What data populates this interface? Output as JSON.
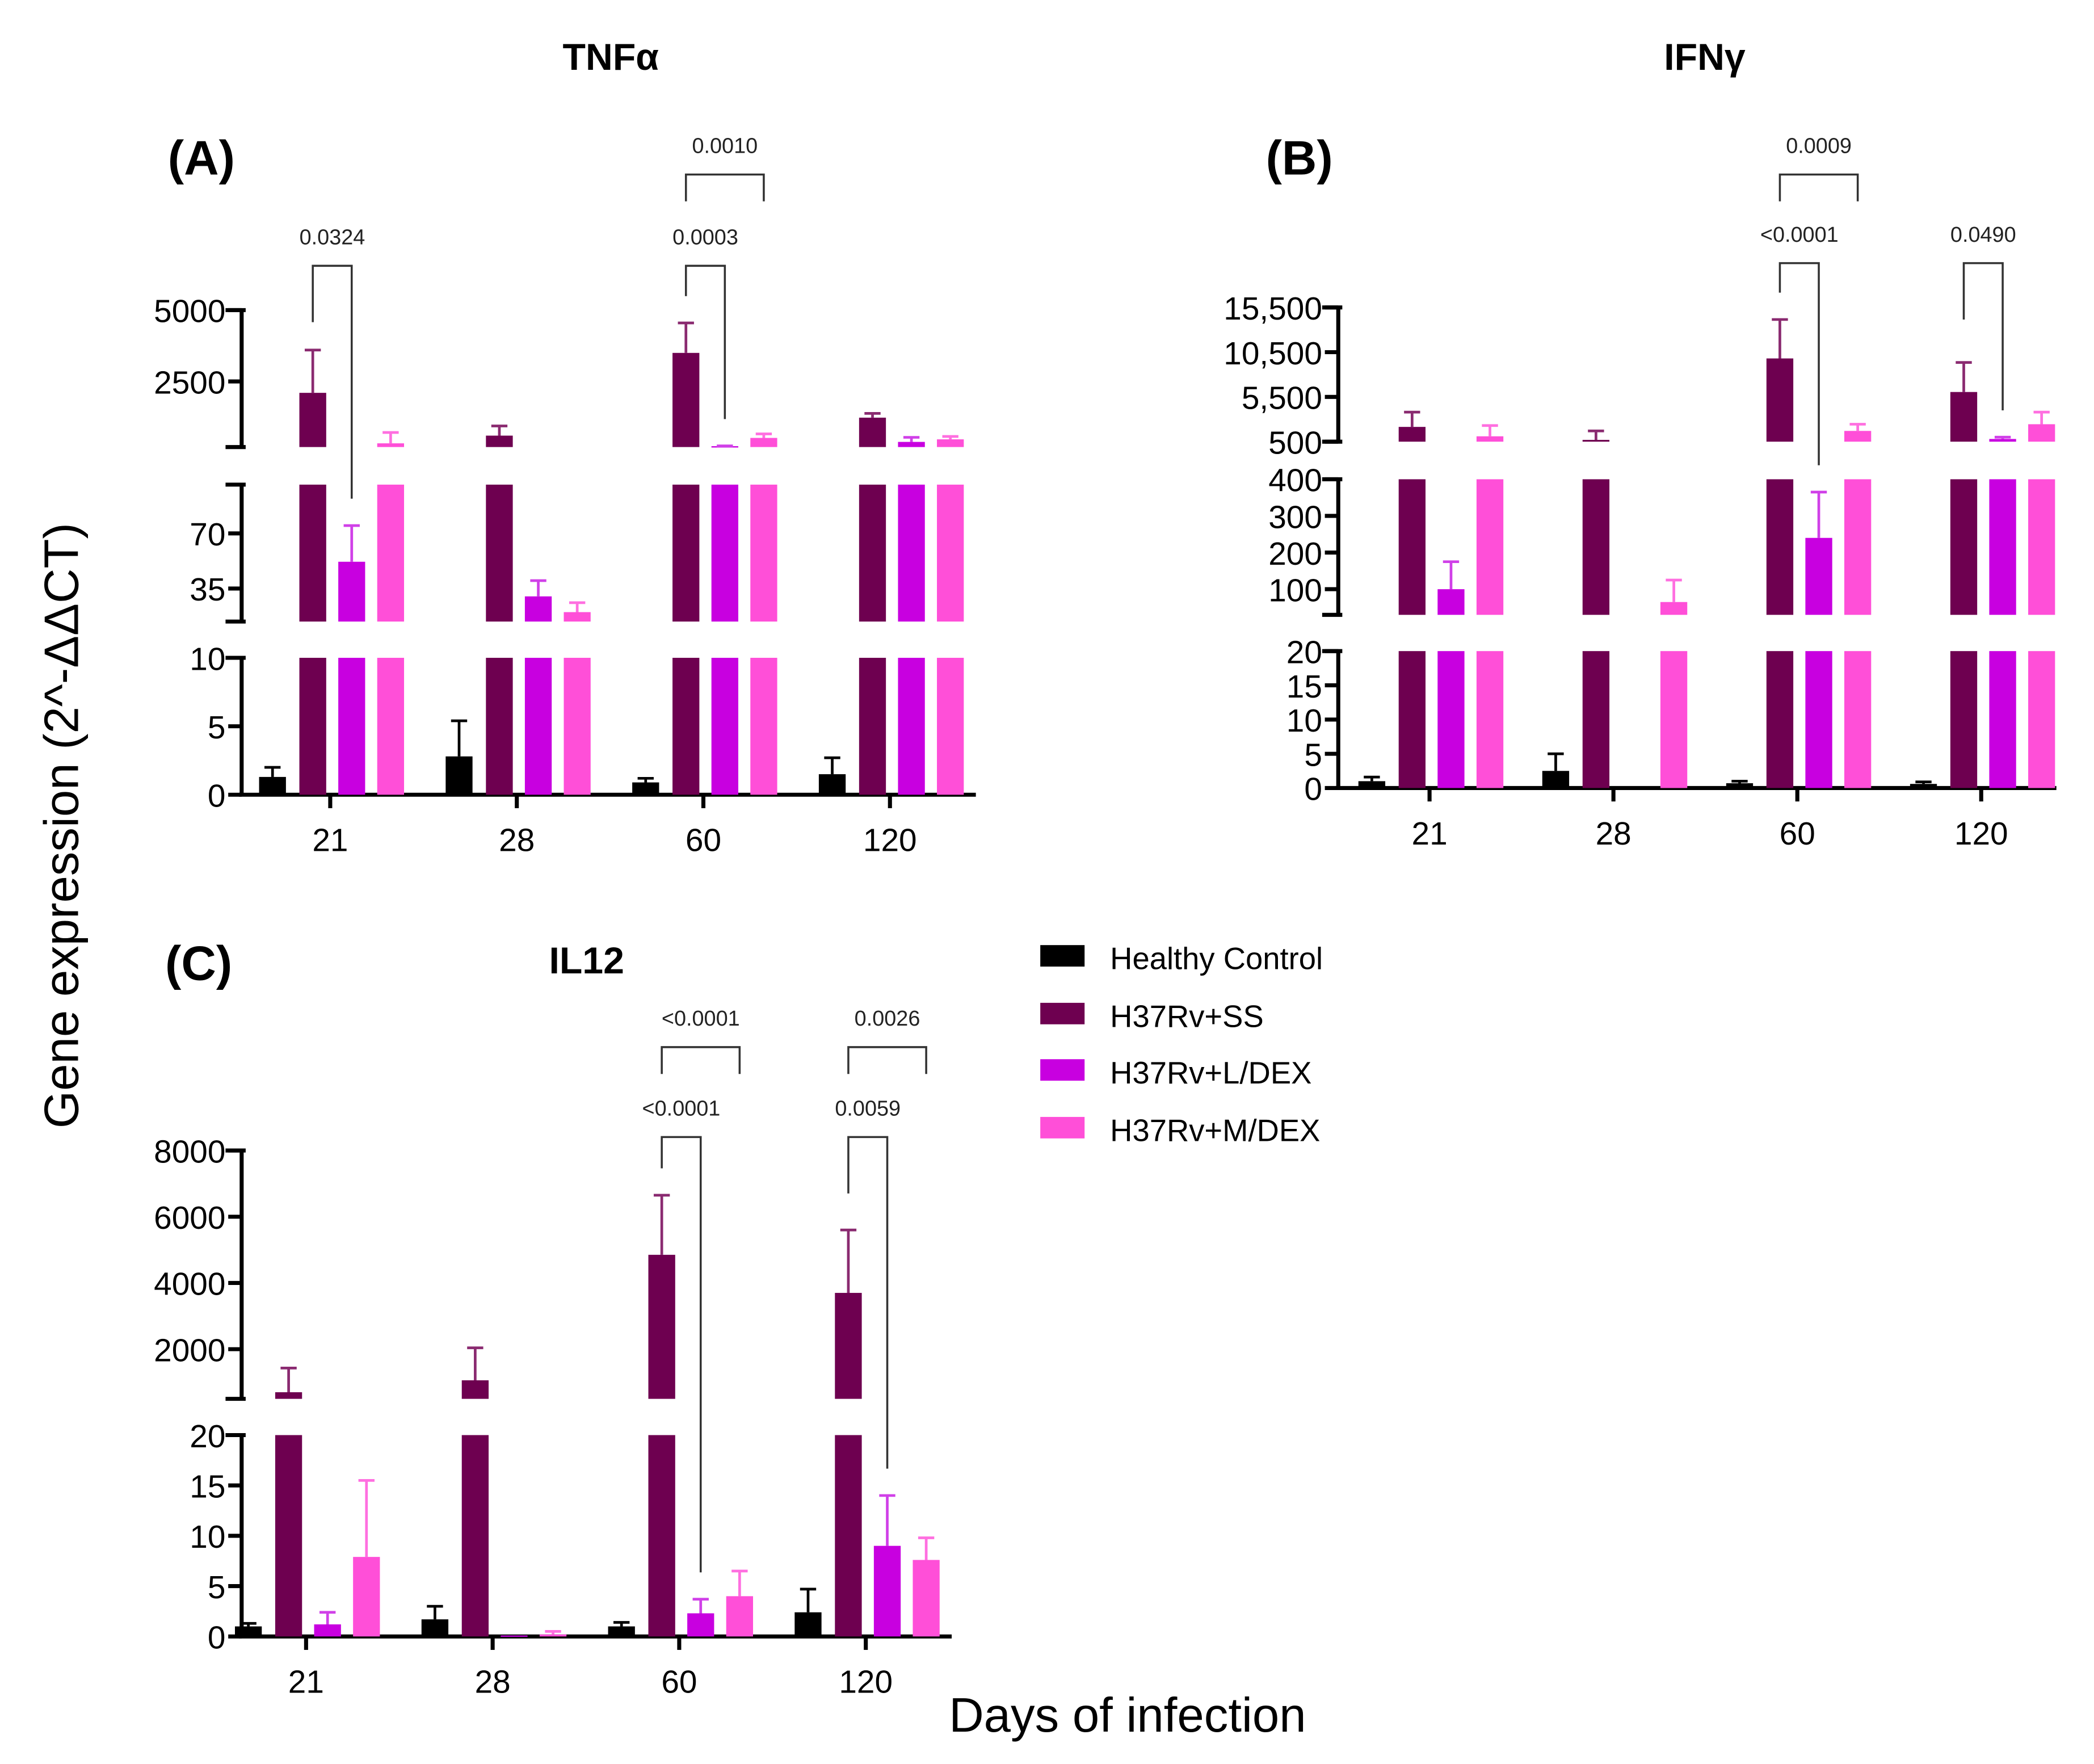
{
  "colors": {
    "Healthy Control": "#000000",
    "H37Rv+SS": "#6e0050",
    "H37Rv+L/DEX": "#c800e0",
    "H37Rv+M/DEX": "#ff4fd8"
  },
  "y_axis_label": "Gene expression (2^-ΔΔCT)",
  "x_axis_label": "Days of infection",
  "legend": [
    "Healthy Control",
    "H37Rv+SS",
    "H37Rv+L/DEX",
    "H37Rv+M/DEX"
  ],
  "chart_data": [
    {
      "type": "bar",
      "panel": "(A)",
      "title": "TNFα",
      "categories": [
        "21",
        "28",
        "60",
        "120"
      ],
      "y_segments": [
        {
          "range": [
            0,
            10
          ],
          "ticks": [
            {
              "value": 0,
              "label": "0"
            },
            {
              "value": 5,
              "label": "5"
            },
            {
              "value": 10,
              "label": "10"
            }
          ]
        },
        {
          "range": [
            14,
            101
          ],
          "ticks": [
            {
              "value": 35,
              "label": "35"
            },
            {
              "value": 70,
              "label": "70"
            }
          ]
        },
        {
          "range": [
            200,
            5000
          ],
          "ticks": [
            {
              "value": 2500,
              "label": "2500"
            },
            {
              "value": 5000,
              "label": "5000"
            }
          ]
        }
      ],
      "series": [
        {
          "name": "Healthy Control",
          "values": [
            1.3,
            2.8,
            0.9,
            1.5
          ],
          "errors": [
            2.0,
            5.4,
            1.2,
            2.7
          ]
        },
        {
          "name": "H37Rv+SS",
          "values": [
            2100,
            600,
            3500,
            1230
          ],
          "errors": [
            3600,
            940,
            4550,
            1380
          ]
        },
        {
          "name": "H37Rv+L/DEX",
          "values": [
            52,
            30,
            230,
            380
          ],
          "errors": [
            75,
            40,
            240,
            540
          ]
        },
        {
          "name": "H37Rv+M/DEX",
          "values": [
            330,
            20,
            520,
            470
          ],
          "errors": [
            710,
            26,
            660,
            570
          ]
        }
      ],
      "comparisons": [
        {
          "category": 0,
          "from": 1,
          "to": 2,
          "label": "0.0324",
          "tier": 1
        },
        {
          "category": 2,
          "from": 1,
          "to": 2,
          "label": "0.0003",
          "tier": 1
        },
        {
          "category": 2,
          "from": 1,
          "to": 3,
          "label": "0.0010",
          "tier": 2
        }
      ]
    },
    {
      "type": "bar",
      "panel": "(B)",
      "title": "IFNγ",
      "categories": [
        "21",
        "28",
        "60",
        "120"
      ],
      "y_segments": [
        {
          "range": [
            0,
            20
          ],
          "ticks": [
            {
              "value": 0,
              "label": "0"
            },
            {
              "value": 5,
              "label": "5"
            },
            {
              "value": 10,
              "label": "10"
            },
            {
              "value": 15,
              "label": "15"
            },
            {
              "value": 20,
              "label": "20"
            }
          ]
        },
        {
          "range": [
            30,
            400
          ],
          "ticks": [
            {
              "value": 100,
              "label": "100"
            },
            {
              "value": 200,
              "label": "200"
            },
            {
              "value": 300,
              "label": "300"
            },
            {
              "value": 400,
              "label": "400"
            }
          ]
        },
        {
          "range": [
            500,
            15500
          ],
          "ticks": [
            {
              "value": 500,
              "label": "500"
            },
            {
              "value": 5500,
              "label": "5,500"
            },
            {
              "value": 10500,
              "label": "10,500"
            },
            {
              "value": 15500,
              "label": "15,500"
            }
          ]
        }
      ],
      "series": [
        {
          "name": "Healthy Control",
          "values": [
            1.0,
            2.5,
            0.7,
            0.6
          ],
          "errors": [
            1.6,
            5.0,
            1.0,
            0.9
          ]
        },
        {
          "name": "H37Rv+SS",
          "values": [
            2150,
            700,
            9800,
            6050
          ],
          "errors": [
            3800,
            1700,
            14150,
            9350
          ]
        },
        {
          "name": "H37Rv+L/DEX",
          "values": [
            100,
            0,
            240,
            800
          ],
          "errors": [
            175,
            0,
            365,
            1000
          ]
        },
        {
          "name": "H37Rv+M/DEX",
          "values": [
            1100,
            65,
            1700,
            2450
          ],
          "errors": [
            2300,
            125,
            2450,
            3800
          ]
        }
      ],
      "comparisons": [
        {
          "category": 2,
          "from": 1,
          "to": 2,
          "label": "<0.0001",
          "tier": 1
        },
        {
          "category": 2,
          "from": 1,
          "to": 3,
          "label": "0.0009",
          "tier": 2
        },
        {
          "category": 3,
          "from": 1,
          "to": 2,
          "label": "0.0490",
          "tier": 1
        }
      ]
    },
    {
      "type": "bar",
      "panel": "(C)",
      "title": "IL12",
      "categories": [
        "21",
        "28",
        "60",
        "120"
      ],
      "y_segments": [
        {
          "range": [
            0,
            20
          ],
          "ticks": [
            {
              "value": 0,
              "label": "0"
            },
            {
              "value": 5,
              "label": "5"
            },
            {
              "value": 10,
              "label": "10"
            },
            {
              "value": 15,
              "label": "15"
            },
            {
              "value": 20,
              "label": "20"
            }
          ]
        },
        {
          "range": [
            500,
            8000
          ],
          "ticks": [
            {
              "value": 2000,
              "label": "2000"
            },
            {
              "value": 4000,
              "label": "4000"
            },
            {
              "value": 6000,
              "label": "6000"
            },
            {
              "value": 8000,
              "label": "8000"
            }
          ]
        }
      ],
      "series": [
        {
          "name": "Healthy Control",
          "values": [
            1.0,
            1.7,
            1.0,
            2.4
          ],
          "errors": [
            1.3,
            3.0,
            1.4,
            4.7
          ]
        },
        {
          "name": "H37Rv+SS",
          "values": [
            700,
            1060,
            4850,
            3700
          ],
          "errors": [
            1430,
            2040,
            6650,
            5600
          ]
        },
        {
          "name": "H37Rv+L/DEX",
          "values": [
            1.2,
            0.1,
            2.3,
            9.0
          ],
          "errors": [
            2.4,
            0.1,
            3.7,
            14.0
          ]
        },
        {
          "name": "H37Rv+M/DEX",
          "values": [
            7.9,
            0.2,
            4.0,
            7.6
          ],
          "errors": [
            15.5,
            0.5,
            6.5,
            9.8
          ]
        }
      ],
      "comparisons": [
        {
          "category": 2,
          "from": 1,
          "to": 2,
          "label": "<0.0001",
          "tier": 1
        },
        {
          "category": 2,
          "from": 1,
          "to": 3,
          "label": "<0.0001",
          "tier": 2
        },
        {
          "category": 3,
          "from": 1,
          "to": 2,
          "label": "0.0059",
          "tier": 1
        },
        {
          "category": 3,
          "from": 1,
          "to": 3,
          "label": "0.0026",
          "tier": 2
        }
      ]
    }
  ]
}
